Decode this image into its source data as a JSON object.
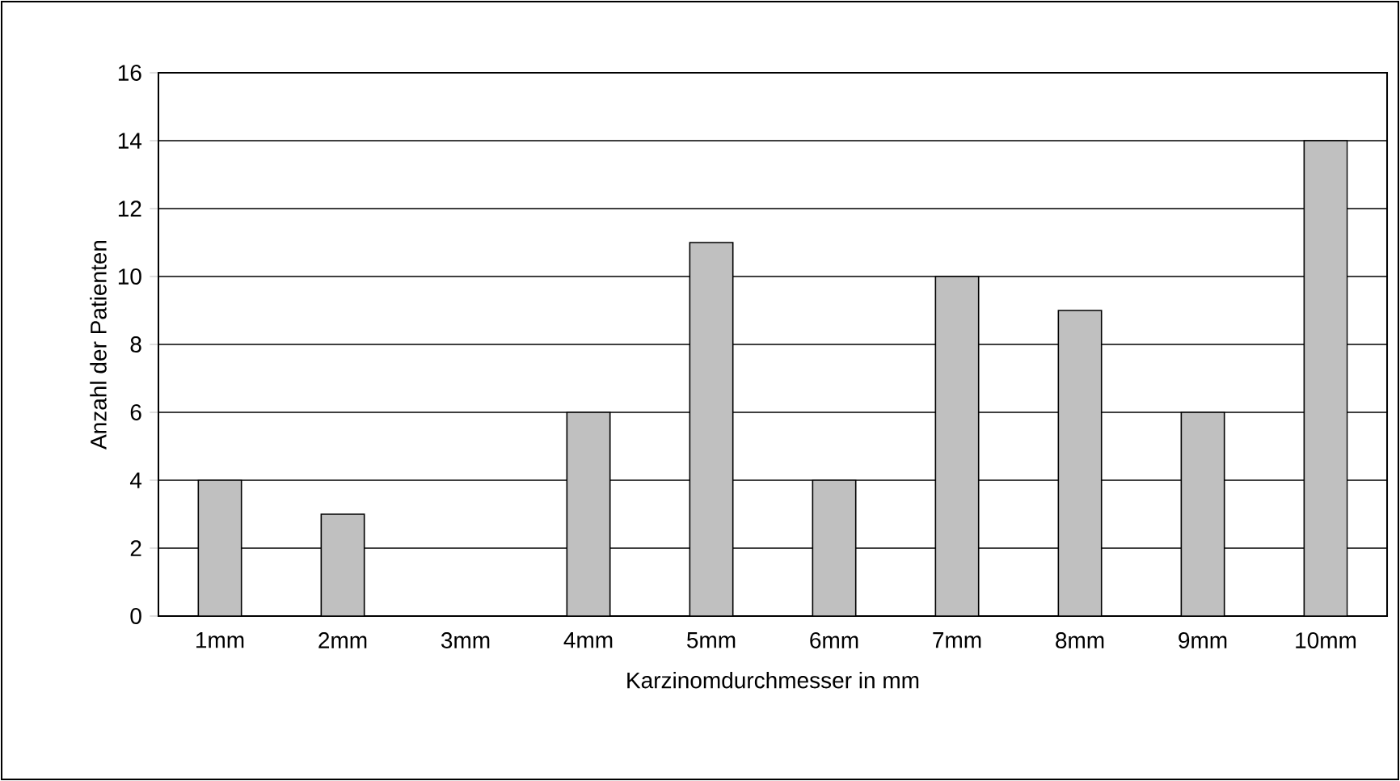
{
  "chart_data": {
    "type": "bar",
    "xlabel": "Karzinomdurchmesser in mm",
    "ylabel": "Anzahl der Patienten",
    "categories": [
      "1mm",
      "2mm",
      "3mm",
      "4mm",
      "5mm",
      "6mm",
      "7mm",
      "8mm",
      "9mm",
      "10mm"
    ],
    "values": [
      4,
      3,
      0,
      6,
      11,
      4,
      10,
      9,
      6,
      14
    ],
    "color": "#c0c0c0",
    "ylim": [
      0,
      16
    ],
    "yticks": [
      0,
      2,
      4,
      6,
      8,
      10,
      12,
      14,
      16
    ],
    "grid": "y"
  }
}
